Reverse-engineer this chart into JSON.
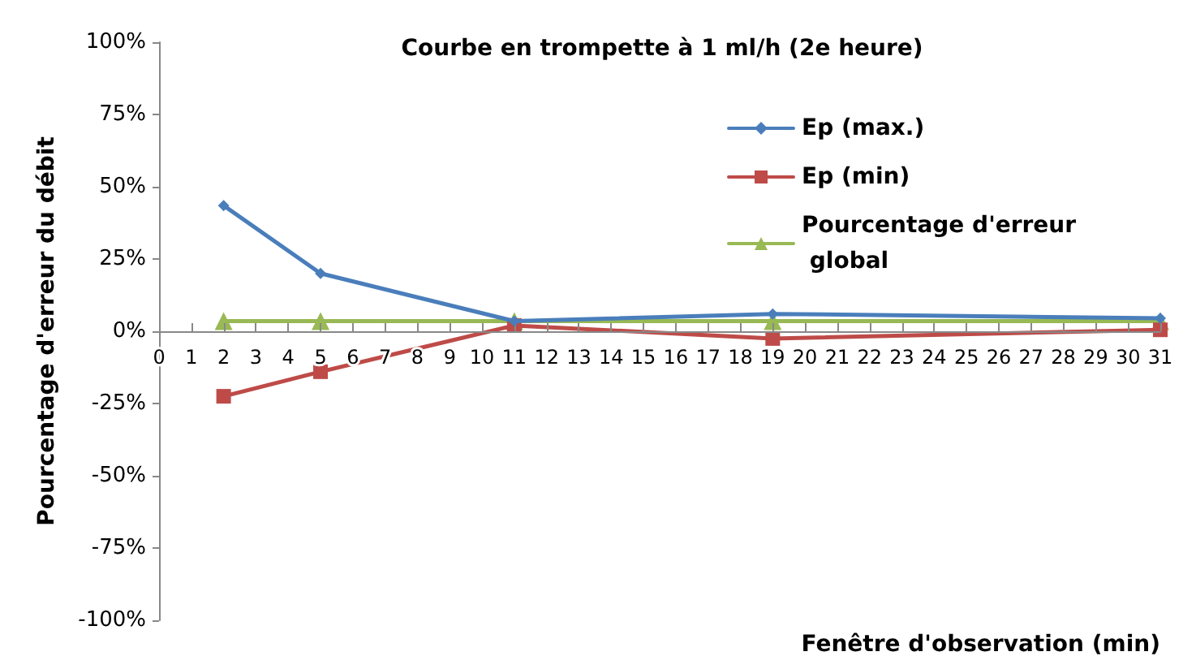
{
  "chart_data": {
    "type": "line",
    "title": "Courbe en trompette à 1 ml/h (2e heure)",
    "xlabel": "Fenêtre d'observation (min)",
    "ylabel": "Pourcentage d'erreur du débit",
    "x": [
      2,
      5,
      11,
      19,
      31
    ],
    "series": [
      {
        "name": "Ep (max.)",
        "color": "#4a7ebb",
        "marker": "diamond",
        "values": [
          43.5,
          20,
          3.5,
          6,
          4.5
        ]
      },
      {
        "name": "Ep (min)",
        "color": "#be4b48",
        "marker": "square",
        "values": [
          -22.5,
          -14,
          2,
          -2.5,
          0.5
        ]
      },
      {
        "name": "Pourcentage d'erreur global",
        "color": "#98b954",
        "marker": "triangle",
        "values": [
          3.5,
          3.5,
          3.5,
          3.5,
          3.5
        ]
      }
    ],
    "xlim": [
      0,
      31
    ],
    "xticks": [
      0,
      1,
      2,
      3,
      4,
      5,
      6,
      7,
      8,
      9,
      10,
      11,
      12,
      13,
      14,
      15,
      16,
      17,
      18,
      19,
      20,
      21,
      22,
      23,
      24,
      25,
      26,
      27,
      28,
      29,
      30,
      31
    ],
    "ylim": [
      -100,
      100
    ],
    "yticks": [
      {
        "value": -100,
        "label": "-100%"
      },
      {
        "value": -75,
        "label": "-75%"
      },
      {
        "value": -50,
        "label": "-50%"
      },
      {
        "value": -25,
        "label": "-25%"
      },
      {
        "value": 0,
        "label": "0%"
      },
      {
        "value": 25,
        "label": "25%"
      },
      {
        "value": 50,
        "label": "50%"
      },
      {
        "value": 75,
        "label": "75%"
      },
      {
        "value": 100,
        "label": "100%"
      }
    ],
    "grid": false,
    "legend": "top right",
    "line_style": "solid"
  }
}
